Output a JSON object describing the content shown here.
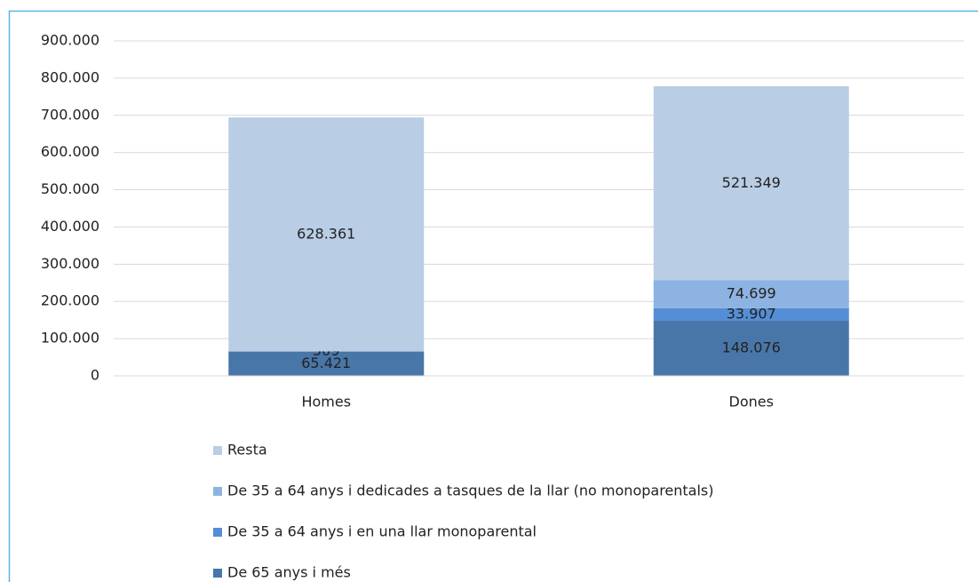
{
  "chart_data": {
    "type": "stacked_bar",
    "categories": [
      "Homes",
      "Dones"
    ],
    "series": [
      {
        "name": "Resta",
        "color": "#b9cde5",
        "values": [
          628361,
          521349
        ],
        "value_labels": [
          "628.361",
          "521.349"
        ]
      },
      {
        "name": "De 35 a 64 anys i dedicades a tasques de la llar (no monoparentals)",
        "color": "#8db3e2",
        "values": [
          null,
          74699
        ],
        "value_labels": [
          null,
          "74.699"
        ]
      },
      {
        "name": "De 35 a 64 anys i en una llar monoparental",
        "color": "#558ed5",
        "values": [
          509,
          33907
        ],
        "value_labels": [
          "509",
          "33.907"
        ]
      },
      {
        "name": "De 65 anys i més",
        "color": "#4876a8",
        "values": [
          65421,
          148076
        ],
        "value_labels": [
          "65.421",
          "148.076"
        ]
      }
    ],
    "ylim": [
      0,
      900000
    ],
    "yticks": [
      0,
      {
        "value": 100000,
        "label": "100.000"
      },
      {
        "value": 200000,
        "label": "200.000"
      },
      {
        "value": 300000,
        "label": "300.000"
      },
      {
        "value": 400000,
        "label": "400.000"
      },
      {
        "value": 500000,
        "label": "500.000"
      },
      {
        "value": 600000,
        "label": "600.000"
      },
      {
        "value": 700000,
        "label": "700.000"
      },
      {
        "value": 800000,
        "label": "800.000"
      },
      {
        "value": 900000,
        "label": "900.000"
      }
    ],
    "grid": true
  }
}
